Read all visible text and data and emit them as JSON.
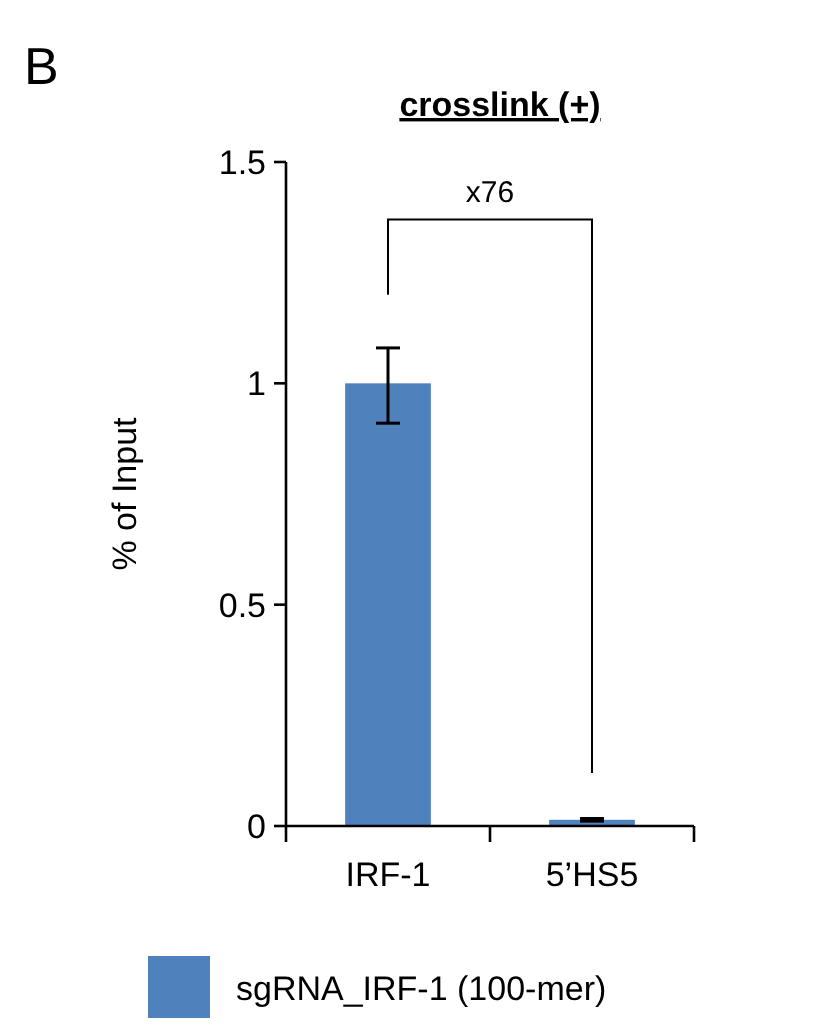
{
  "chart_data": {
    "type": "bar",
    "title": "crosslink (+)",
    "ylabel": "% of Input",
    "categories": [
      "IRF-1",
      "5’HS5"
    ],
    "series": [
      {
        "name": "sgRNA_IRF-1 (100-mer)",
        "color": "#4f81bd",
        "values": [
          1.0,
          0.014
        ],
        "errors": [
          [
            0.91,
            1.08
          ],
          0.003
        ]
      }
    ],
    "ylim": [
      0,
      1.5
    ],
    "yticks": [
      0,
      0.5,
      1,
      1.5
    ],
    "grid": false,
    "legend": "bottom",
    "annotations": [
      "B",
      "x76"
    ]
  }
}
